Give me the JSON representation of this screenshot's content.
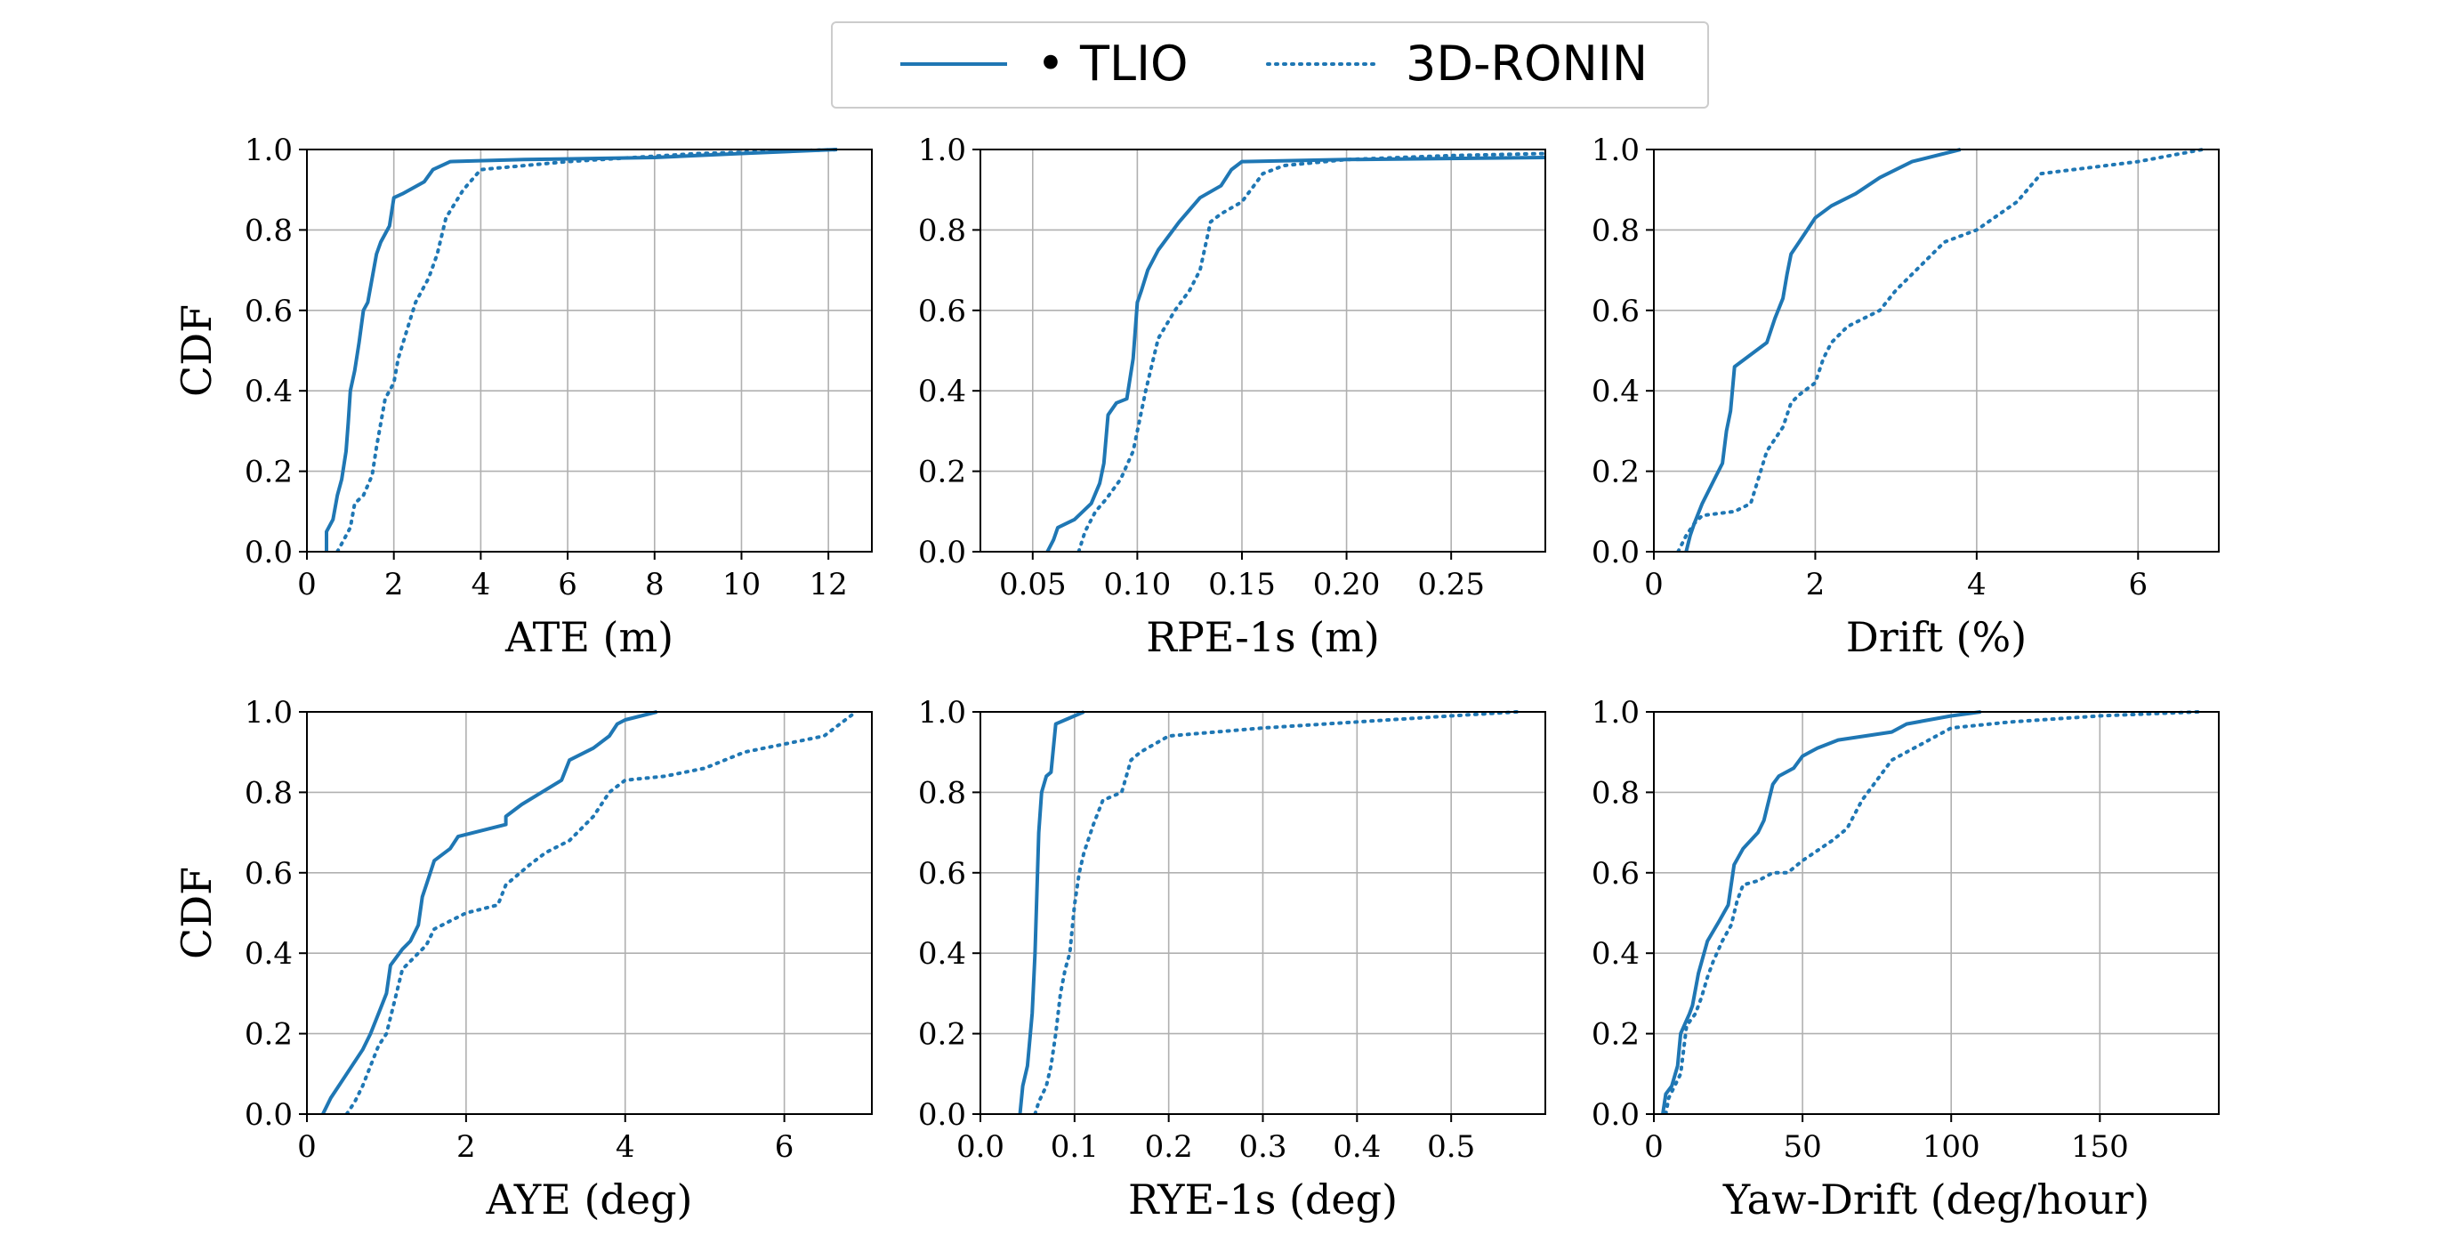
{
  "colors": {
    "series": "#1f77b4"
  },
  "legend": {
    "placement": "top-center",
    "entries": [
      {
        "label": "• TLIO",
        "style": "solid"
      },
      {
        "label": "3D-RONIN",
        "style": "dotted"
      }
    ]
  },
  "chart_data": [
    {
      "type": "line",
      "xlabel": "ATE (m)",
      "ylabel": "CDF",
      "xlim": [
        0,
        13
      ],
      "ylim": [
        0,
        1
      ],
      "xticks": [
        0,
        2,
        4,
        6,
        8,
        10,
        12
      ],
      "xtick_labels": [
        "0",
        "2",
        "4",
        "6",
        "8",
        "10",
        "12"
      ],
      "yticks": [
        0,
        0.2,
        0.4,
        0.6,
        0.8,
        1.0
      ],
      "ytick_labels": [
        "0.0",
        "0.2",
        "0.4",
        "0.6",
        "0.8",
        "1.0"
      ],
      "grid": true,
      "series": [
        {
          "name": "• TLIO",
          "style": "solid",
          "x": [
            0.45,
            0.45,
            0.6,
            0.7,
            0.8,
            0.9,
            0.95,
            1.0,
            1.1,
            1.2,
            1.3,
            1.4,
            1.6,
            1.7,
            1.9,
            2.0,
            2.2,
            2.7,
            2.9,
            3.3,
            5.0,
            8.0,
            10.0,
            12.2
          ],
          "y": [
            0.0,
            0.05,
            0.08,
            0.14,
            0.18,
            0.25,
            0.32,
            0.4,
            0.45,
            0.52,
            0.6,
            0.62,
            0.74,
            0.77,
            0.81,
            0.88,
            0.89,
            0.92,
            0.95,
            0.97,
            0.975,
            0.98,
            0.99,
            1.0
          ]
        },
        {
          "name": "3D-RONIN",
          "style": "dotted",
          "x": [
            0.7,
            0.8,
            1.0,
            1.1,
            1.3,
            1.5,
            1.6,
            1.8,
            2.0,
            2.1,
            2.3,
            2.5,
            2.8,
            3.0,
            3.2,
            3.6,
            4.0,
            6.0,
            9.0,
            12.3
          ],
          "y": [
            0.0,
            0.02,
            0.06,
            0.12,
            0.14,
            0.19,
            0.26,
            0.38,
            0.42,
            0.48,
            0.55,
            0.62,
            0.68,
            0.74,
            0.83,
            0.9,
            0.95,
            0.97,
            0.99,
            1.0
          ]
        }
      ]
    },
    {
      "type": "line",
      "xlabel": "RPE-1s (m)",
      "ylabel": "",
      "xlim": [
        0.025,
        0.295
      ],
      "ylim": [
        0,
        1
      ],
      "xticks": [
        0.05,
        0.1,
        0.15,
        0.2,
        0.25
      ],
      "xtick_labels": [
        "0.05",
        "0.10",
        "0.15",
        "0.20",
        "0.25"
      ],
      "yticks": [
        0,
        0.2,
        0.4,
        0.6,
        0.8,
        1.0
      ],
      "ytick_labels": [
        "0.0",
        "0.2",
        "0.4",
        "0.6",
        "0.8",
        "1.0"
      ],
      "grid": true,
      "series": [
        {
          "name": "• TLIO",
          "style": "solid",
          "x": [
            0.057,
            0.06,
            0.062,
            0.07,
            0.078,
            0.082,
            0.084,
            0.086,
            0.09,
            0.095,
            0.098,
            0.1,
            0.102,
            0.105,
            0.11,
            0.12,
            0.13,
            0.14,
            0.145,
            0.15,
            0.2,
            0.295
          ],
          "y": [
            0.0,
            0.03,
            0.06,
            0.08,
            0.12,
            0.17,
            0.22,
            0.34,
            0.37,
            0.38,
            0.48,
            0.62,
            0.65,
            0.7,
            0.75,
            0.82,
            0.88,
            0.91,
            0.95,
            0.97,
            0.975,
            0.98
          ]
        },
        {
          "name": "3D-RONIN",
          "style": "dotted",
          "x": [
            0.072,
            0.075,
            0.08,
            0.085,
            0.092,
            0.098,
            0.1,
            0.104,
            0.11,
            0.118,
            0.125,
            0.13,
            0.135,
            0.14,
            0.15,
            0.16,
            0.17,
            0.2,
            0.25,
            0.295
          ],
          "y": [
            0.0,
            0.05,
            0.1,
            0.13,
            0.18,
            0.25,
            0.3,
            0.4,
            0.53,
            0.6,
            0.65,
            0.7,
            0.82,
            0.84,
            0.87,
            0.94,
            0.96,
            0.975,
            0.985,
            0.99
          ]
        }
      ]
    },
    {
      "type": "line",
      "xlabel": "Drift (%)",
      "ylabel": "",
      "xlim": [
        0,
        7.0
      ],
      "ylim": [
        0,
        1
      ],
      "xticks": [
        0,
        2,
        4,
        6
      ],
      "xtick_labels": [
        "0",
        "2",
        "4",
        "6"
      ],
      "yticks": [
        0,
        0.2,
        0.4,
        0.6,
        0.8,
        1.0
      ],
      "ytick_labels": [
        "0.0",
        "0.2",
        "0.4",
        "0.6",
        "0.8",
        "1.0"
      ],
      "grid": true,
      "series": [
        {
          "name": "• TLIO",
          "style": "solid",
          "x": [
            0.4,
            0.45,
            0.5,
            0.6,
            0.75,
            0.85,
            0.9,
            0.95,
            1.0,
            1.4,
            1.5,
            1.6,
            1.65,
            1.7,
            1.8,
            1.9,
            2.0,
            2.2,
            2.5,
            2.8,
            3.2,
            3.8
          ],
          "y": [
            0.0,
            0.04,
            0.07,
            0.12,
            0.18,
            0.22,
            0.3,
            0.35,
            0.46,
            0.52,
            0.58,
            0.63,
            0.69,
            0.74,
            0.77,
            0.8,
            0.83,
            0.86,
            0.89,
            0.93,
            0.97,
            1.0
          ]
        },
        {
          "name": "3D-RONIN",
          "style": "dotted",
          "x": [
            0.3,
            0.4,
            0.5,
            0.6,
            1.0,
            1.2,
            1.4,
            1.5,
            1.6,
            1.7,
            1.8,
            2.0,
            2.1,
            2.2,
            2.4,
            2.8,
            3.0,
            3.6,
            4.0,
            4.5,
            4.8,
            6.0,
            6.8
          ],
          "y": [
            0.0,
            0.04,
            0.07,
            0.09,
            0.1,
            0.12,
            0.25,
            0.28,
            0.31,
            0.37,
            0.39,
            0.42,
            0.48,
            0.52,
            0.56,
            0.6,
            0.65,
            0.77,
            0.8,
            0.87,
            0.94,
            0.97,
            1.0
          ]
        }
      ]
    },
    {
      "type": "line",
      "xlabel": "AYE (deg)",
      "ylabel": "CDF",
      "xlim": [
        0,
        7.1
      ],
      "ylim": [
        0,
        1
      ],
      "xticks": [
        0,
        2,
        4,
        6
      ],
      "xtick_labels": [
        "0",
        "2",
        "4",
        "6"
      ],
      "yticks": [
        0,
        0.2,
        0.4,
        0.6,
        0.8,
        1.0
      ],
      "ytick_labels": [
        "0.0",
        "0.2",
        "0.4",
        "0.6",
        "0.8",
        "1.0"
      ],
      "grid": true,
      "series": [
        {
          "name": "• TLIO",
          "style": "solid",
          "x": [
            0.2,
            0.3,
            0.5,
            0.7,
            0.8,
            0.9,
            1.0,
            1.05,
            1.2,
            1.3,
            1.4,
            1.45,
            1.5,
            1.6,
            1.8,
            1.9,
            2.5,
            2.5,
            2.7,
            3.2,
            3.3,
            3.6,
            3.8,
            3.9,
            4.0,
            4.2,
            4.4
          ],
          "y": [
            0.0,
            0.04,
            0.1,
            0.16,
            0.2,
            0.25,
            0.3,
            0.37,
            0.41,
            0.43,
            0.47,
            0.54,
            0.57,
            0.63,
            0.66,
            0.69,
            0.72,
            0.74,
            0.77,
            0.83,
            0.88,
            0.91,
            0.94,
            0.97,
            0.98,
            0.99,
            1.0
          ]
        },
        {
          "name": "3D-RONIN",
          "style": "dotted",
          "x": [
            0.5,
            0.6,
            0.7,
            0.8,
            0.9,
            1.0,
            1.1,
            1.2,
            1.4,
            1.5,
            1.6,
            1.8,
            2.0,
            2.4,
            2.5,
            2.8,
            3.0,
            3.3,
            3.6,
            3.8,
            4.0,
            4.5,
            5.0,
            5.5,
            6.0,
            6.5,
            6.9
          ],
          "y": [
            0.0,
            0.03,
            0.07,
            0.12,
            0.17,
            0.2,
            0.28,
            0.36,
            0.4,
            0.42,
            0.46,
            0.48,
            0.5,
            0.52,
            0.57,
            0.62,
            0.65,
            0.68,
            0.74,
            0.8,
            0.83,
            0.84,
            0.86,
            0.9,
            0.92,
            0.94,
            1.0
          ]
        }
      ]
    },
    {
      "type": "line",
      "xlabel": "RYE-1s (deg)",
      "ylabel": "",
      "xlim": [
        0,
        0.6
      ],
      "ylim": [
        0,
        1
      ],
      "xticks": [
        0,
        0.1,
        0.2,
        0.3,
        0.4,
        0.5
      ],
      "xtick_labels": [
        "0.0",
        "0.1",
        "0.2",
        "0.3",
        "0.4",
        "0.5"
      ],
      "yticks": [
        0,
        0.2,
        0.4,
        0.6,
        0.8,
        1.0
      ],
      "ytick_labels": [
        "0.0",
        "0.2",
        "0.4",
        "0.6",
        "0.8",
        "1.0"
      ],
      "grid": true,
      "series": [
        {
          "name": "• TLIO",
          "style": "solid",
          "x": [
            0.042,
            0.045,
            0.05,
            0.055,
            0.058,
            0.06,
            0.062,
            0.065,
            0.07,
            0.075,
            0.08,
            0.09,
            0.1,
            0.11
          ],
          "y": [
            0.0,
            0.07,
            0.12,
            0.25,
            0.4,
            0.55,
            0.7,
            0.8,
            0.84,
            0.85,
            0.97,
            0.98,
            0.99,
            1.0
          ]
        },
        {
          "name": "3D-RONIN",
          "style": "dotted",
          "x": [
            0.058,
            0.062,
            0.07,
            0.075,
            0.08,
            0.085,
            0.09,
            0.095,
            0.1,
            0.105,
            0.11,
            0.12,
            0.13,
            0.15,
            0.16,
            0.17,
            0.2,
            0.3,
            0.4,
            0.5,
            0.57
          ],
          "y": [
            0.0,
            0.03,
            0.07,
            0.12,
            0.2,
            0.3,
            0.36,
            0.4,
            0.52,
            0.6,
            0.65,
            0.72,
            0.78,
            0.8,
            0.88,
            0.9,
            0.94,
            0.96,
            0.975,
            0.99,
            1.0
          ]
        }
      ]
    },
    {
      "type": "line",
      "xlabel": "Yaw-Drift (deg/hour)",
      "ylabel": "",
      "xlim": [
        0,
        190
      ],
      "ylim": [
        0,
        1
      ],
      "xticks": [
        0,
        50,
        100,
        150
      ],
      "xtick_labels": [
        "0",
        "50",
        "100",
        "150"
      ],
      "yticks": [
        0,
        0.2,
        0.4,
        0.6,
        0.8,
        1.0
      ],
      "ytick_labels": [
        "0.0",
        "0.2",
        "0.4",
        "0.6",
        "0.8",
        "1.0"
      ],
      "grid": true,
      "series": [
        {
          "name": "• TLIO",
          "style": "solid",
          "x": [
            3,
            4,
            6,
            8,
            9,
            12,
            13,
            15,
            18,
            22,
            25,
            27,
            30,
            35,
            37,
            38,
            40,
            42,
            47,
            50,
            55,
            62,
            80,
            85,
            100,
            110
          ],
          "y": [
            0.0,
            0.05,
            0.07,
            0.12,
            0.2,
            0.25,
            0.27,
            0.35,
            0.43,
            0.48,
            0.52,
            0.62,
            0.66,
            0.7,
            0.73,
            0.76,
            0.82,
            0.84,
            0.86,
            0.89,
            0.91,
            0.93,
            0.95,
            0.97,
            0.99,
            1.0
          ]
        },
        {
          "name": "3D-RONIN",
          "style": "dotted",
          "x": [
            4,
            5,
            7,
            9,
            11,
            14,
            16,
            18,
            20,
            23,
            26,
            28,
            30,
            35,
            40,
            45,
            50,
            60,
            65,
            70,
            80,
            90,
            100,
            120,
            150,
            183
          ],
          "y": [
            0.0,
            0.04,
            0.07,
            0.1,
            0.22,
            0.25,
            0.29,
            0.34,
            0.38,
            0.43,
            0.47,
            0.53,
            0.57,
            0.58,
            0.6,
            0.6,
            0.63,
            0.68,
            0.71,
            0.78,
            0.88,
            0.92,
            0.96,
            0.975,
            0.99,
            1.0
          ]
        }
      ]
    }
  ]
}
